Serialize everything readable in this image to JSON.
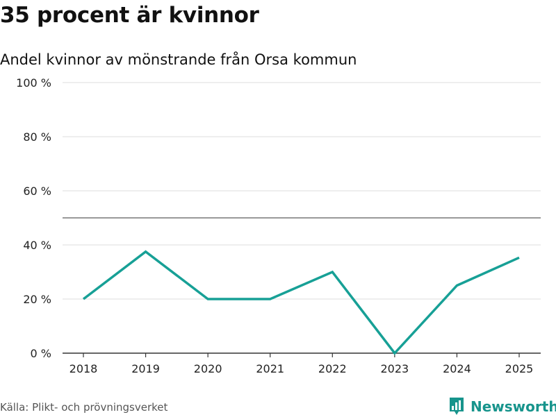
{
  "title": "35 procent är kvinnor",
  "subtitle": "Andel kvinnor av mönstrande från Orsa kommun",
  "source": "Källa: Plikt- och prövningsverket",
  "brand": {
    "name": "Newsworthy",
    "icon": "newsworthy-logo-icon",
    "color": "#17948c"
  },
  "chart_data": {
    "type": "line",
    "title": "35 procent är kvinnor",
    "subtitle": "Andel kvinnor av mönstrande från Orsa kommun",
    "xlabel": "",
    "ylabel": "",
    "categories": [
      "2018",
      "2019",
      "2020",
      "2021",
      "2022",
      "2023",
      "2024",
      "2025"
    ],
    "series": [
      {
        "name": "Andel kvinnor",
        "color": "#17a096",
        "values": [
          20,
          37.5,
          20,
          20,
          30,
          0,
          25,
          35.3
        ]
      }
    ],
    "ylim": [
      0,
      100
    ],
    "yticks": [
      0,
      20,
      40,
      60,
      80,
      100
    ],
    "ytick_labels": [
      "0 %",
      "20 %",
      "40 %",
      "60 %",
      "80 %",
      "100 %"
    ],
    "reference_line": 50,
    "grid": true
  }
}
